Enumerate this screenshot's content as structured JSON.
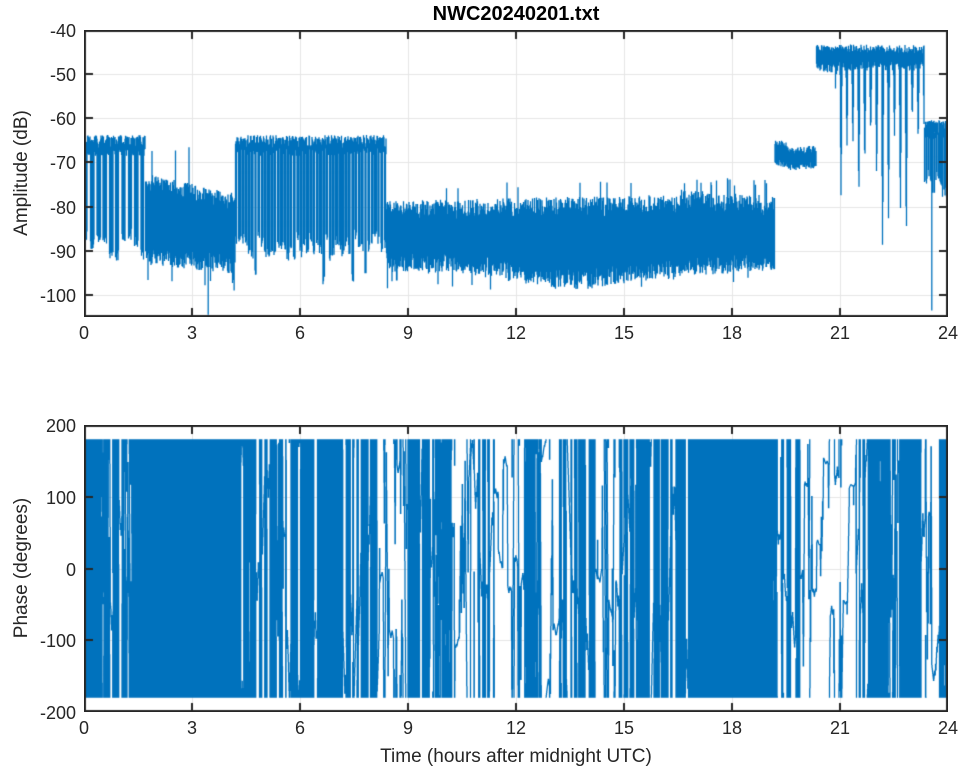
{
  "figure": {
    "title": "NWC20240201.txt",
    "background": "#ffffff",
    "axis_color": "#262626",
    "grid_color": "#e6e6e6",
    "text_color": "#262626",
    "line_color": "#0072BD"
  },
  "chart_data": [
    {
      "type": "line",
      "title": "NWC20240201.txt",
      "ylabel": "Amplitude (dB)",
      "xlim": [
        0,
        24
      ],
      "ylim": [
        -105,
        -40
      ],
      "xticks": [
        0,
        3,
        6,
        9,
        12,
        15,
        18,
        21,
        24
      ],
      "xtick_labels": [
        "0",
        "3",
        "6",
        "9",
        "12",
        "15",
        "18",
        "21",
        "24"
      ],
      "yticks": [
        -100,
        -90,
        -80,
        -70,
        -60,
        -50,
        -40
      ],
      "ytick_labels": [
        "-100",
        "-90",
        "-80",
        "-70",
        "-60",
        "-50",
        "-40"
      ],
      "grid": true,
      "legend": null,
      "series": [
        {
          "name": "amplitude_db",
          "synthesis": "envelope-segments",
          "segments": [
            {
              "t0": 0.0,
              "t1": 1.7,
              "mode": "bursts",
              "top": -65.5,
              "topJit": 1.4,
              "bot": -88.5,
              "botJit": 3.0,
              "duty": 0.58,
              "period": 0.175,
              "deepP": 0.1,
              "deepV": -95.5
            },
            {
              "t0": 1.7,
              "t1": 4.2,
              "mode": "band",
              "topA": -74.5,
              "topB": -79.0,
              "topJit": 2.0,
              "botA": -91.0,
              "botB": -93.0,
              "botJit": 2.2,
              "upP": 0.008,
              "upV": -67.5,
              "dnP": 0.02,
              "dnV": -97
            },
            {
              "t0": 4.2,
              "t1": 8.4,
              "mode": "bursts",
              "top": -65.5,
              "topJit": 1.4,
              "bot": -88.5,
              "botJit": 2.5,
              "duty": 0.65,
              "period": 0.09,
              "deepP": 0.12,
              "deepV": -96.5
            },
            {
              "t0": 8.4,
              "t1": 16.6,
              "mode": "band",
              "topA": -81.0,
              "topB": -79.5,
              "topJit": 2.3,
              "botA": -92.5,
              "botB": -94.0,
              "botJit": 2.4,
              "upP": 0.012,
              "upV": -75,
              "dnP": 0.012,
              "dnV": -98,
              "bulgeT": 13.4,
              "bulgeW": 1.8,
              "bulgeD": -3
            },
            {
              "t0": 16.6,
              "t1": 19.2,
              "mode": "band",
              "topA": -78.5,
              "topB": -80.0,
              "topJit": 2.4,
              "botA": -93.5,
              "botB": -92.5,
              "botJit": 2.2,
              "upP": 0.06,
              "upV": -74.5,
              "dnP": 0.01,
              "dnV": -96
            },
            {
              "t0": 19.2,
              "t1": 19.55,
              "mode": "band",
              "topA": -65.2,
              "topB": -66.5,
              "topJit": 0.9,
              "botA": -69.5,
              "botB": -70.5,
              "botJit": 0.9,
              "upP": 0.004,
              "upV": -64,
              "dnP": 0.0,
              "dnV": -71
            },
            {
              "t0": 19.55,
              "t1": 20.35,
              "mode": "band",
              "topA": -67.5,
              "topB": -67.0,
              "topJit": 0.9,
              "botA": -71.0,
              "botB": -70.5,
              "botJit": 0.9,
              "upP": 0.003,
              "upV": -65.5,
              "dnP": 0.0,
              "dnV": -72
            },
            {
              "t0": 20.35,
              "t1": 20.95,
              "mode": "band",
              "topA": -44.0,
              "topB": -44.5,
              "topJit": 0.8,
              "botA": -48.0,
              "botB": -49.0,
              "botJit": 1.3,
              "upP": 0.0,
              "upV": -43,
              "dnP": 0.008,
              "dnV": -53
            },
            {
              "t0": 20.95,
              "t1": 23.35,
              "mode": "plateau_dips",
              "top": -44.5,
              "topJit": 1.2,
              "bot": -48.0,
              "botJit": 1.2,
              "dipPeriod": 0.165,
              "dipWidth": 0.06,
              "dipMin": -92,
              "dipMax": -60
            },
            {
              "t0": 23.35,
              "t1": 24.0,
              "mode": "bursts",
              "top": -62.0,
              "topJit": 1.6,
              "bot": -74.5,
              "botJit": 2.2,
              "duty": 0.55,
              "period": 0.055,
              "deepP": 0.05,
              "deepV": -80
            }
          ],
          "events": [
            {
              "t": 3.45,
              "v": -104.5
            },
            {
              "t": 4.17,
              "v": -99
            },
            {
              "t": 8.43,
              "v": -98.5
            },
            {
              "t": 23.55,
              "v": -103.5
            }
          ]
        }
      ]
    },
    {
      "type": "line",
      "ylabel": "Phase (degrees)",
      "xlabel": "Time (hours after midnight UTC)",
      "xlim": [
        0,
        24
      ],
      "ylim": [
        -200,
        200
      ],
      "xticks": [
        0,
        3,
        6,
        9,
        12,
        15,
        18,
        21,
        24
      ],
      "xtick_labels": [
        "0",
        "3",
        "6",
        "9",
        "12",
        "15",
        "18",
        "21",
        "24"
      ],
      "yticks": [
        -200,
        -100,
        0,
        100,
        200
      ],
      "ytick_labels": [
        "-200",
        "-100",
        "0",
        "100",
        "200"
      ],
      "grid": true,
      "legend": null,
      "series": [
        {
          "name": "phase_deg",
          "synthesis": "wrapped-phase-segments",
          "clip": [
            -180,
            180
          ],
          "segments": [
            {
              "t0": 0.0,
              "t1": 0.45,
              "rate": 260,
              "gapP": 0.02
            },
            {
              "t0": 0.45,
              "t1": 0.75,
              "rate": 90,
              "gapP": 0.05
            },
            {
              "t0": 0.75,
              "t1": 1.1,
              "rate": 260,
              "gapP": 0.02
            },
            {
              "t0": 1.1,
              "t1": 1.35,
              "rate": 100,
              "gapP": 0.05
            },
            {
              "t0": 1.35,
              "t1": 1.75,
              "rate": 300,
              "gapP": 0.01
            },
            {
              "t0": 1.75,
              "t1": 4.3,
              "rate": 1000,
              "gapP": 0.0
            },
            {
              "t0": 4.3,
              "t1": 5.3,
              "rate": 280,
              "gapP": 0.03
            },
            {
              "t0": 5.3,
              "t1": 5.6,
              "rate": 110,
              "gapP": 0.05
            },
            {
              "t0": 5.6,
              "t1": 8.2,
              "rate": 300,
              "gapP": 0.025
            },
            {
              "t0": 8.2,
              "t1": 9.0,
              "rate": 60,
              "gapP": 0.07
            },
            {
              "t0": 9.0,
              "t1": 9.6,
              "rate": 350,
              "gapP": 0.01
            },
            {
              "t0": 9.6,
              "t1": 10.3,
              "rate": 130,
              "gapP": 0.05
            },
            {
              "t0": 10.3,
              "t1": 10.7,
              "rate": 55,
              "gapP": 0.08
            },
            {
              "t0": 10.7,
              "t1": 11.4,
              "rate": 200,
              "gapP": 0.04
            },
            {
              "t0": 11.4,
              "t1": 12.2,
              "rate": 70,
              "gapP": 0.08
            },
            {
              "t0": 12.2,
              "t1": 12.7,
              "rate": 150,
              "gapP": 0.05
            },
            {
              "t0": 12.7,
              "t1": 13.2,
              "rate": 55,
              "gapP": 0.1
            },
            {
              "t0": 13.2,
              "t1": 14.2,
              "rate": 240,
              "gapP": 0.03
            },
            {
              "t0": 14.2,
              "t1": 14.8,
              "rate": 60,
              "gapP": 0.09
            },
            {
              "t0": 14.8,
              "t1": 15.5,
              "rate": 150,
              "gapP": 0.05
            },
            {
              "t0": 15.5,
              "t1": 16.8,
              "rate": 330,
              "gapP": 0.02
            },
            {
              "t0": 16.8,
              "t1": 19.1,
              "rate": 1000,
              "gapP": 0.0
            },
            {
              "t0": 19.1,
              "t1": 19.9,
              "rate": 150,
              "gapP": 0.05
            },
            {
              "t0": 19.9,
              "t1": 20.35,
              "rate": 55,
              "gapP": 0.1
            },
            {
              "t0": 20.35,
              "t1": 20.75,
              "rate": 25,
              "gapP": 0.12
            },
            {
              "t0": 20.75,
              "t1": 21.05,
              "rate": 90,
              "gapP": 0.06
            },
            {
              "t0": 21.05,
              "t1": 21.45,
              "rate": 22,
              "gapP": 0.12
            },
            {
              "t0": 21.45,
              "t1": 22.35,
              "rate": 200,
              "gapP": 0.03
            },
            {
              "t0": 22.35,
              "t1": 22.65,
              "rate": 70,
              "gapP": 0.07
            },
            {
              "t0": 22.65,
              "t1": 23.35,
              "rate": 240,
              "gapP": 0.03
            },
            {
              "t0": 23.35,
              "t1": 23.65,
              "rate": 90,
              "gapP": 0.06
            },
            {
              "t0": 23.65,
              "t1": 24.0,
              "rate": 220,
              "gapP": 0.03
            }
          ]
        }
      ]
    }
  ]
}
